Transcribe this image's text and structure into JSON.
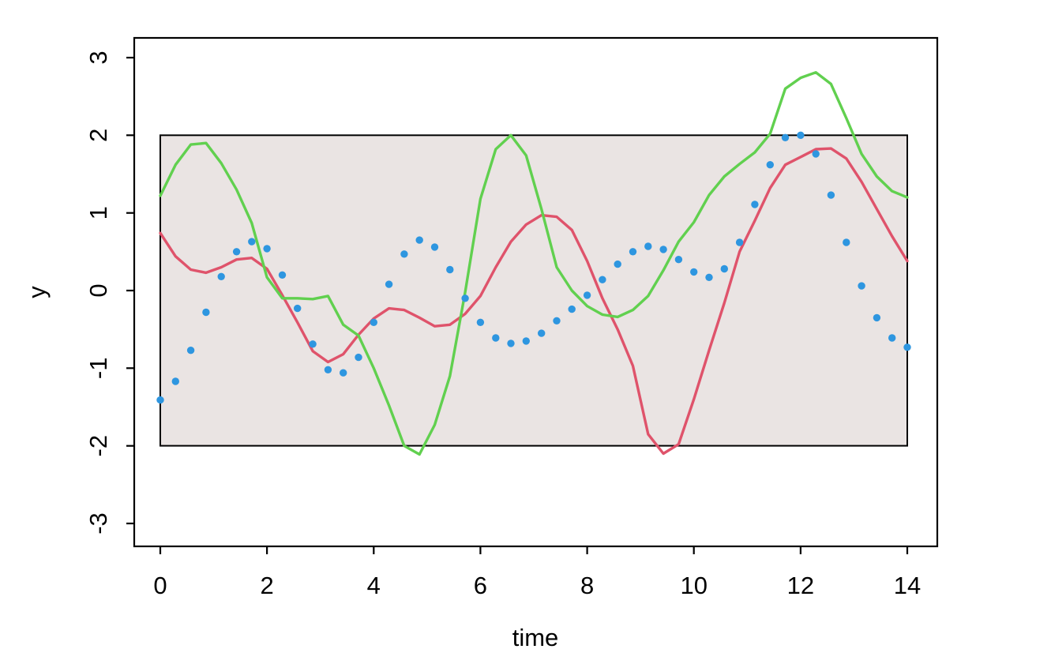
{
  "chart_data": {
    "type": "line",
    "title": "",
    "xlabel": "time",
    "ylabel": "y",
    "xlim": [
      0,
      14
    ],
    "ylim": [
      -3,
      3
    ],
    "x_ticks": [
      0,
      2,
      4,
      6,
      8,
      10,
      12,
      14
    ],
    "y_ticks": [
      -3,
      -2,
      -1,
      0,
      1,
      2,
      3
    ],
    "grid": false,
    "legend": "none",
    "background_color": "#FFFFFF",
    "axis_color": "#000000",
    "band": {
      "comment": "shaded rectangle spanning x 0..14, y -2..2",
      "x0": 0,
      "x1": 14,
      "y0": -2,
      "y1": 2,
      "fill": "#EAE4E3",
      "stroke": "#000000"
    },
    "x": [
      0,
      0.286,
      0.571,
      0.857,
      1.143,
      1.429,
      1.714,
      2,
      2.286,
      2.571,
      2.857,
      3.143,
      3.429,
      3.714,
      4,
      4.286,
      4.571,
      4.857,
      5.143,
      5.429,
      5.714,
      6,
      6.286,
      6.571,
      6.857,
      7.143,
      7.429,
      7.714,
      8,
      8.286,
      8.571,
      8.857,
      9.143,
      9.429,
      9.714,
      10,
      10.286,
      10.571,
      10.857,
      11.143,
      11.429,
      11.714,
      12,
      12.286,
      12.571,
      12.857,
      13.143,
      13.429,
      13.714,
      14
    ],
    "series": [
      {
        "name": "blue-points",
        "render": "scatter",
        "color": "#2E96E0",
        "values": [
          -1.41,
          -1.17,
          -0.77,
          -0.28,
          0.18,
          0.5,
          0.63,
          0.54,
          0.2,
          -0.23,
          -0.69,
          -1.02,
          -1.06,
          -0.86,
          -0.41,
          0.08,
          0.47,
          0.65,
          0.56,
          0.27,
          -0.1,
          -0.41,
          -0.61,
          -0.68,
          -0.65,
          -0.55,
          -0.39,
          -0.24,
          -0.06,
          0.14,
          0.34,
          0.5,
          0.57,
          0.53,
          0.4,
          0.24,
          0.17,
          0.28,
          0.62,
          1.11,
          1.62,
          1.97,
          2,
          1.76,
          1.23,
          0.62,
          0.06,
          -0.35,
          -0.61,
          -0.73
        ]
      },
      {
        "name": "red-line",
        "render": "line",
        "color": "#DF536B",
        "values": [
          0.74,
          0.44,
          0.27,
          0.23,
          0.3,
          0.4,
          0.42,
          0.28,
          -0.06,
          -0.41,
          -0.78,
          -0.92,
          -0.82,
          -0.57,
          -0.36,
          -0.23,
          -0.25,
          -0.35,
          -0.46,
          -0.44,
          -0.3,
          -0.07,
          0.3,
          0.63,
          0.85,
          0.97,
          0.95,
          0.78,
          0.38,
          -0.1,
          -0.5,
          -0.97,
          -1.85,
          -2.1,
          -1.98,
          -1.4,
          -0.77,
          -0.16,
          0.5,
          0.9,
          1.32,
          1.62,
          1.72,
          1.82,
          1.83,
          1.7,
          1.4,
          1.05,
          0.7,
          0.38
        ]
      },
      {
        "name": "green-line",
        "render": "line",
        "color": "#61D04F",
        "values": [
          1.22,
          1.62,
          1.88,
          1.9,
          1.64,
          1.3,
          0.87,
          0.17,
          -0.1,
          -0.1,
          -0.11,
          -0.07,
          -0.44,
          -0.58,
          -1,
          -1.48,
          -2,
          -2.11,
          -1.73,
          -1.1,
          -0.02,
          1.18,
          1.82,
          2,
          1.74,
          1.05,
          0.3,
          0,
          -0.2,
          -0.31,
          -0.34,
          -0.25,
          -0.07,
          0.26,
          0.63,
          0.88,
          1.23,
          1.47,
          1.63,
          1.78,
          2.02,
          2.6,
          2.74,
          2.81,
          2.66,
          2.22,
          1.76,
          1.47,
          1.28,
          1.2
        ]
      }
    ]
  }
}
